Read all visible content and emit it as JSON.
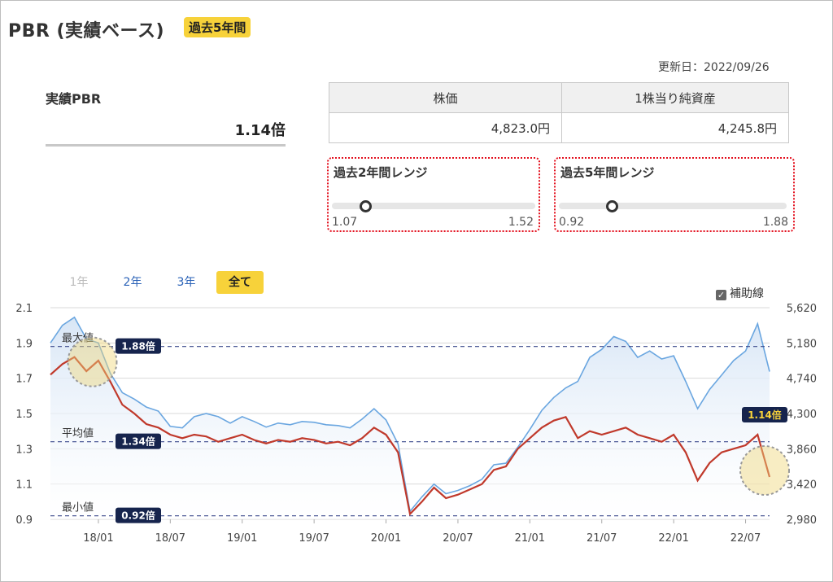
{
  "header": {
    "title": "PBR (実績ベース)",
    "badge": "過去5年間"
  },
  "updated": "更新日：2022/09/26",
  "pbr": {
    "label": "実績PBR",
    "value": "1.14倍"
  },
  "stock_table": {
    "headers": [
      "株価",
      "1株当り純資産"
    ],
    "values": [
      "4,823.0円",
      "4,245.8円"
    ]
  },
  "ranges": [
    {
      "title": "過去2年間レンジ",
      "min": "1.07",
      "max": "1.52",
      "position": 0.16
    },
    {
      "title": "過去5年間レンジ",
      "min": "0.92",
      "max": "1.88",
      "position": 0.23
    }
  ],
  "tabs": [
    {
      "label": "1年",
      "state": "disabled"
    },
    {
      "label": "2年",
      "state": "link"
    },
    {
      "label": "3年",
      "state": "link"
    },
    {
      "label": "全て",
      "state": "active"
    }
  ],
  "aux_lines": {
    "label": "補助線",
    "checked": true
  },
  "colors": {
    "pbr_line": "#c0392b",
    "price_line": "#6aa6e0",
    "price_fill": "#d8e6f6",
    "badge": "#f7d23a",
    "label_bg": "#16244d",
    "range_border": "#e3101e"
  },
  "chart_data": {
    "type": "line",
    "x_tick_labels": [
      "18/01",
      "18/07",
      "19/01",
      "19/07",
      "20/01",
      "20/07",
      "21/01",
      "21/07",
      "22/01",
      "22/07"
    ],
    "y_left": {
      "ticks": [
        "2.1",
        "1.9",
        "1.7",
        "1.5",
        "1.3",
        "1.1",
        "0.9"
      ],
      "range": [
        0.9,
        2.1
      ]
    },
    "y_right": {
      "ticks": [
        "5,620",
        "5,180",
        "4,740",
        "4,300",
        "3,860",
        "3,420",
        "2,980"
      ],
      "range": [
        2980,
        5620
      ]
    },
    "reference_lines": [
      {
        "name": "最大値",
        "value": 1.88,
        "label": "1.88倍"
      },
      {
        "name": "平均値",
        "value": 1.34,
        "label": "1.34倍"
      },
      {
        "name": "最小値",
        "value": 0.92,
        "label": "0.92倍"
      }
    ],
    "current_label": "1.14倍",
    "x_range": [
      "2017/09",
      "2022/09"
    ],
    "series": [
      {
        "axis": "left",
        "points": [
          [
            "2017/09",
            1.72
          ],
          [
            "2017/10",
            1.78
          ],
          [
            "2017/11",
            1.82
          ],
          [
            "2017/12",
            1.74
          ],
          [
            "2018/01",
            1.8
          ],
          [
            "2018/02",
            1.68
          ],
          [
            "2018/03",
            1.55
          ],
          [
            "2018/04",
            1.5
          ],
          [
            "2018/05",
            1.44
          ],
          [
            "2018/06",
            1.42
          ],
          [
            "2018/07",
            1.38
          ],
          [
            "2018/08",
            1.36
          ],
          [
            "2018/09",
            1.38
          ],
          [
            "2018/10",
            1.37
          ],
          [
            "2018/11",
            1.34
          ],
          [
            "2018/12",
            1.36
          ],
          [
            "2019/01",
            1.38
          ],
          [
            "2019/02",
            1.35
          ],
          [
            "2019/03",
            1.33
          ],
          [
            "2019/04",
            1.35
          ],
          [
            "2019/05",
            1.34
          ],
          [
            "2019/06",
            1.36
          ],
          [
            "2019/07",
            1.35
          ],
          [
            "2019/08",
            1.33
          ],
          [
            "2019/09",
            1.34
          ],
          [
            "2019/10",
            1.32
          ],
          [
            "2019/11",
            1.36
          ],
          [
            "2019/12",
            1.42
          ],
          [
            "2020/01",
            1.38
          ],
          [
            "2020/02",
            1.28
          ],
          [
            "2020/03",
            0.93
          ],
          [
            "2020/04",
            1.0
          ],
          [
            "2020/05",
            1.08
          ],
          [
            "2020/06",
            1.02
          ],
          [
            "2020/07",
            1.04
          ],
          [
            "2020/08",
            1.07
          ],
          [
            "2020/09",
            1.1
          ],
          [
            "2020/10",
            1.18
          ],
          [
            "2020/11",
            1.2
          ],
          [
            "2020/12",
            1.3
          ],
          [
            "2021/01",
            1.36
          ],
          [
            "2021/02",
            1.42
          ],
          [
            "2021/03",
            1.46
          ],
          [
            "2021/04",
            1.48
          ],
          [
            "2021/05",
            1.36
          ],
          [
            "2021/06",
            1.4
          ],
          [
            "2021/07",
            1.38
          ],
          [
            "2021/08",
            1.4
          ],
          [
            "2021/09",
            1.42
          ],
          [
            "2021/10",
            1.38
          ],
          [
            "2021/11",
            1.36
          ],
          [
            "2021/12",
            1.34
          ],
          [
            "2022/01",
            1.38
          ],
          [
            "2022/02",
            1.28
          ],
          [
            "2022/03",
            1.12
          ],
          [
            "2022/04",
            1.22
          ],
          [
            "2022/05",
            1.28
          ],
          [
            "2022/06",
            1.3
          ],
          [
            "2022/07",
            1.32
          ],
          [
            "2022/08",
            1.38
          ],
          [
            "2022/09",
            1.14
          ]
        ]
      },
      {
        "axis": "right",
        "points": [
          [
            "2017/09",
            5180
          ],
          [
            "2017/10",
            5400
          ],
          [
            "2017/11",
            5500
          ],
          [
            "2017/12",
            5230
          ],
          [
            "2018/01",
            5180
          ],
          [
            "2018/02",
            4800
          ],
          [
            "2018/03",
            4560
          ],
          [
            "2018/04",
            4480
          ],
          [
            "2018/05",
            4380
          ],
          [
            "2018/06",
            4330
          ],
          [
            "2018/07",
            4140
          ],
          [
            "2018/08",
            4120
          ],
          [
            "2018/09",
            4260
          ],
          [
            "2018/10",
            4300
          ],
          [
            "2018/11",
            4260
          ],
          [
            "2018/12",
            4180
          ],
          [
            "2019/01",
            4260
          ],
          [
            "2019/02",
            4200
          ],
          [
            "2019/03",
            4130
          ],
          [
            "2019/04",
            4180
          ],
          [
            "2019/05",
            4160
          ],
          [
            "2019/06",
            4200
          ],
          [
            "2019/07",
            4190
          ],
          [
            "2019/08",
            4160
          ],
          [
            "2019/09",
            4150
          ],
          [
            "2019/10",
            4120
          ],
          [
            "2019/11",
            4230
          ],
          [
            "2019/12",
            4360
          ],
          [
            "2020/01",
            4220
          ],
          [
            "2020/02",
            3920
          ],
          [
            "2020/03",
            3080
          ],
          [
            "2020/04",
            3260
          ],
          [
            "2020/05",
            3420
          ],
          [
            "2020/06",
            3300
          ],
          [
            "2020/07",
            3340
          ],
          [
            "2020/08",
            3400
          ],
          [
            "2020/09",
            3480
          ],
          [
            "2020/10",
            3660
          ],
          [
            "2020/11",
            3680
          ],
          [
            "2020/12",
            3880
          ],
          [
            "2021/01",
            4100
          ],
          [
            "2021/02",
            4340
          ],
          [
            "2021/03",
            4500
          ],
          [
            "2021/04",
            4620
          ],
          [
            "2021/05",
            4700
          ],
          [
            "2021/06",
            5000
          ],
          [
            "2021/07",
            5100
          ],
          [
            "2021/08",
            5260
          ],
          [
            "2021/09",
            5200
          ],
          [
            "2021/10",
            5000
          ],
          [
            "2021/11",
            5080
          ],
          [
            "2021/12",
            4980
          ],
          [
            "2022/01",
            5020
          ],
          [
            "2022/02",
            4700
          ],
          [
            "2022/03",
            4360
          ],
          [
            "2022/04",
            4600
          ],
          [
            "2022/05",
            4780
          ],
          [
            "2022/06",
            4960
          ],
          [
            "2022/07",
            5080
          ],
          [
            "2022/08",
            5420
          ],
          [
            "2022/09",
            4823
          ]
        ]
      }
    ]
  }
}
